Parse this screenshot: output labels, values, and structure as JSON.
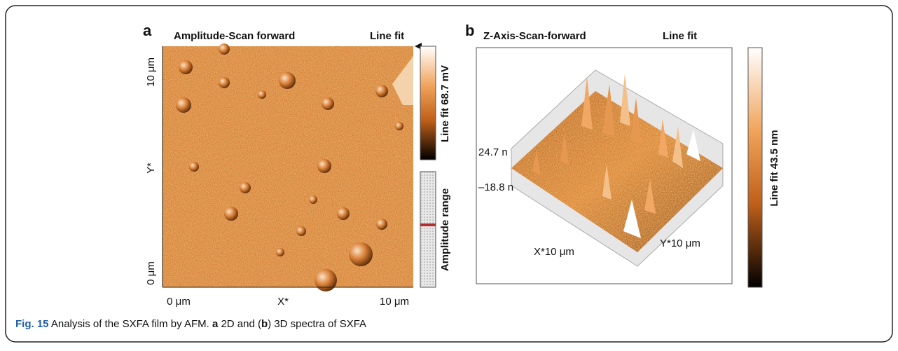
{
  "panel_a": {
    "label": "a",
    "title": "Amplitude-Scan forward",
    "mode": "Line fit",
    "y_axis": {
      "top": "10 μm",
      "middle": "Y*",
      "bottom": "0 μm"
    },
    "x_axis": {
      "left": "0 μm",
      "middle": "X*",
      "right": "10 μm"
    },
    "colorbar_label": "Line fit 68.7 mV",
    "range_label": "Amplitude range"
  },
  "panel_b": {
    "label": "b",
    "title": "Z-Axis-Scan-forward",
    "mode": "Line fit",
    "z_top": "24.7 n",
    "z_bottom": "–18.8 n",
    "x_label": "X*10 μm",
    "y_label": "Y*10 μm",
    "colorbar_label": "Line fit 43.5 nm"
  },
  "caption": {
    "figure": "Fig. 15",
    "text1": " Analysis of the SXFA film by AFM. ",
    "a": "a",
    "text2": " 2D and (",
    "b": "b",
    "text3": ") 3D spectra of SXFA"
  }
}
